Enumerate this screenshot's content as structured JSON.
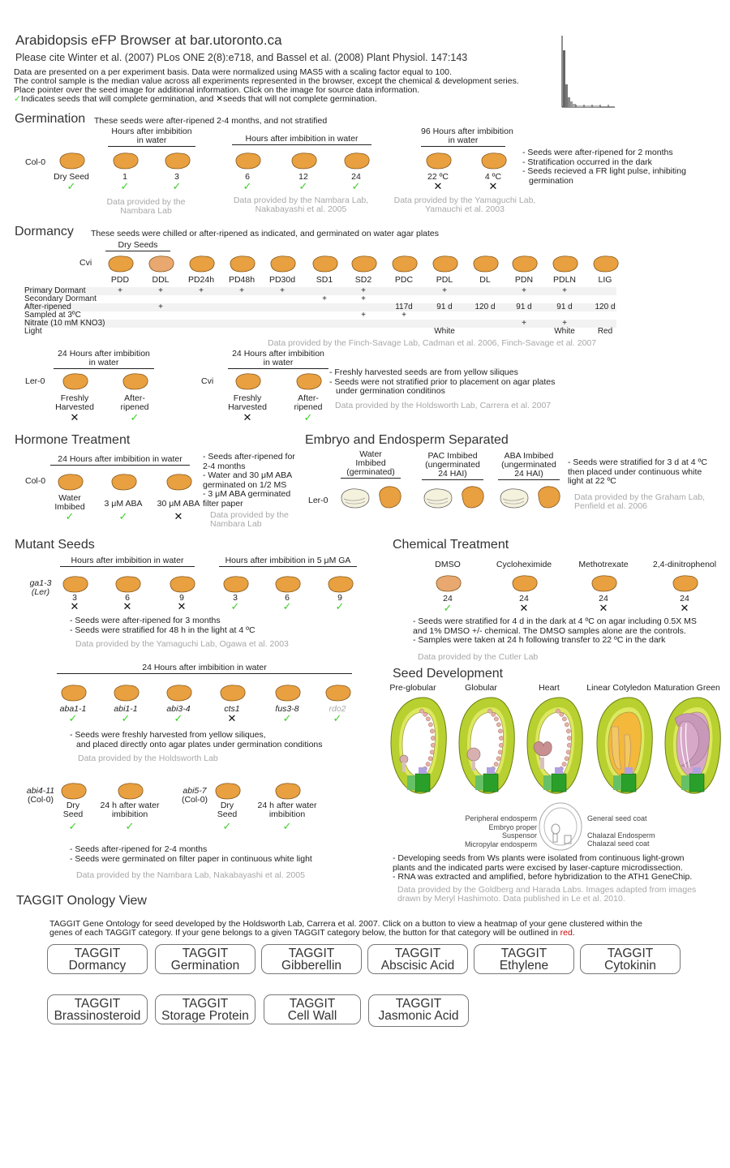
{
  "header": {
    "title": "Arabidopsis eFP Browser at bar.utoronto.ca",
    "citation": "Please cite Winter et al. (2007) PLos ONE 2(8):e718, and Bassel et al. (2008) Plant Physiol. 147:143",
    "intro_lines": [
      "Data are presented on a per experiment basis. Data were normalized using MAS5 with a scaling factor equal to 100.",
      "The control sample is the median value across all experiments represented in the browser, except the chemical & development series.",
      "Place pointer over the seed image for additional information. Click on the image for source data information."
    ],
    "legend_ok": "Indicates seeds that will complete germination, and",
    "legend_no": "seeds that will not complete germination."
  },
  "germination": {
    "title": "Germination",
    "subtitle": "These seeds were  after-ripened 2-4 months, and not stratified",
    "row_label": "Col-0",
    "hdr_a": [
      "Hours after imbibition",
      "in water"
    ],
    "hdr_b": "Hours after imbibition in water",
    "hdr_c": [
      "96 Hours after imbibition",
      "in water"
    ],
    "labels": [
      "Dry Seed",
      "1",
      "3",
      "6",
      "12",
      "24",
      "22 ºC",
      "4 ºC"
    ],
    "credit_a": [
      "Data provided by the",
      "Nambara Lab"
    ],
    "credit_b": [
      "Data provided by the Nambara Lab,",
      "Nakabayashi et al. 2005"
    ],
    "credit_c": [
      "Data provided by the Yamaguchi Lab,",
      "Yamauchi et al. 2003"
    ],
    "notes": [
      "- Seeds were after-ripened for 2 months",
      "- Stratification occurred in the dark",
      "- Seeds recieved a FR light pulse, inhibiting",
      "  germination"
    ]
  },
  "dormancy": {
    "title": "Dormancy",
    "subtitle": "These seeds were chilled or after-ripened as indicated, and germinated on water agar plates",
    "dry_seeds": "Dry Seeds",
    "row_label": "Cvi",
    "columns": [
      "PDD",
      "DDL",
      "PD24h",
      "PD48h",
      "PD30d",
      "SD1",
      "SD2",
      "PDC",
      "PDL",
      "DL",
      "PDN",
      "PDLN",
      "LIG"
    ],
    "rows": [
      {
        "label": "Primary Dormant",
        "cells": [
          "+",
          "+",
          "+",
          "+",
          "+",
          "",
          "+",
          "",
          "+",
          "",
          "+",
          "+",
          ""
        ]
      },
      {
        "label": "Secondary Dormant",
        "cells": [
          "",
          "",
          "",
          "",
          "",
          "+",
          "+",
          "",
          "",
          "",
          "",
          "",
          ""
        ]
      },
      {
        "label": "After-ripened",
        "cells": [
          "",
          "+",
          "",
          "",
          "",
          "",
          "",
          "117d",
          "91 d",
          "120 d",
          "91 d",
          "91 d",
          "120 d"
        ]
      },
      {
        "label": "Sampled at 3ºC",
        "cells": [
          "",
          "",
          "",
          "",
          "",
          "",
          "+",
          "+",
          "",
          "",
          "",
          "",
          ""
        ]
      },
      {
        "label": "Nitrate (10 mM KNO3)",
        "cells": [
          "",
          "",
          "",
          "",
          "",
          "",
          "",
          "",
          "",
          "",
          "+",
          "+",
          ""
        ]
      },
      {
        "label": "Light",
        "cells": [
          "",
          "",
          "",
          "",
          "",
          "",
          "",
          "",
          "White",
          "",
          "",
          "White",
          "Red"
        ]
      }
    ],
    "credit": "Data provided by the Finch-Savage Lab, Cadman et al. 2006, Finch-Savage et al. 2007",
    "hdr_ler": [
      "24 Hours after imbibition",
      "in water"
    ],
    "hdr_cvi": [
      "24 Hours after imbibition",
      "in water"
    ],
    "ler_label": "Ler-0",
    "cvi_label": "Cvi",
    "sub_labels": [
      [
        "Freshly",
        "Harvested"
      ],
      [
        "After-",
        "ripened"
      ],
      [
        "Freshly",
        "Harvested"
      ],
      [
        "After-",
        "ripened"
      ]
    ],
    "notes": [
      "- Freshly harvested seeds are from yellow siliques",
      "- Seeds were not stratified prior to placement on agar plates",
      "  under germination conditinos"
    ],
    "credit2": "Data provided by the Holdsworth Lab, Carrera et al. 2007"
  },
  "hormone": {
    "title": "Hormone Treatment",
    "hdr": "24 Hours after imbibition in water",
    "row_label": "Col-0",
    "labels": [
      [
        "Water",
        "Imbibed"
      ],
      [
        "3 μM ABA"
      ],
      [
        "30 μM ABA"
      ]
    ],
    "notes": [
      "- Seeds after-ripened for",
      "  2-4 months",
      "- Water and 30 μM ABA",
      "  germinated on 1/2 MS",
      "- 3 μM ABA germinated",
      "  filter paper"
    ],
    "credit": [
      "Data provided by the",
      "Nambara Lab"
    ]
  },
  "embryo": {
    "title": "Embryo and Endosperm Separated",
    "hdr_a": [
      "Water",
      "Imbibed",
      "(germinated)"
    ],
    "hdr_b": [
      "PAC Imbibed",
      "(ungerminated",
      "24 HAI)"
    ],
    "hdr_c": [
      "ABA Imbibed",
      "(ungerminated",
      "24 HAI)"
    ],
    "row_label": "Ler-0",
    "notes": [
      "- Seeds were stratified for 3 d at 4 ºC",
      "  then placed under continuous white",
      "  light at 22 ºC"
    ],
    "credit": [
      "Data provided by the Graham Lab,",
      "Penfield et al. 2006"
    ]
  },
  "mutant": {
    "title": "Mutant Seeds",
    "hdr_a": "Hours after imbibition in water",
    "hdr_b": "Hours after imbibition in 5 μM GA",
    "row_label": [
      "ga1-3",
      "(Ler)"
    ],
    "labels": [
      "3",
      "6",
      "9",
      "3",
      "6",
      "9"
    ],
    "notes": [
      "- Seeds were after-ripened for 3 months",
      "- Seeds were stratified for 48 h in the light at 4 ºC"
    ],
    "credit": "Data provided by the Yamaguchi Lab, Ogawa et al. 2003",
    "hdr_c": "24 Hours after imbibition in water",
    "labels2": [
      "aba1-1",
      "abi1-1",
      "abi3-4",
      "cts1",
      "fus3-8",
      "rdo2"
    ],
    "notes2": [
      "- Seeds were freshly harvested from yellow siliques,",
      "  and placed directly onto agar plates under germination conditions"
    ],
    "credit2": "Data provided by the Holdsworth Lab",
    "abi4_label": [
      "abi4-11",
      "(Col-0)"
    ],
    "abi5_label": [
      "abi5-7",
      "(Col-0)"
    ],
    "labels3": [
      [
        "Dry",
        "Seed"
      ],
      [
        "24 h after water",
        "imbibition"
      ],
      [
        "Dry",
        "Seed"
      ],
      [
        "24 h after water",
        "imbibition"
      ]
    ],
    "notes3": [
      "- Seeds after-ripened for 2-4 months",
      "- Seeds were germinated on filter paper in continuous white light"
    ],
    "credit3": "Data provided by the Nambara Lab, Nakabayashi et al. 2005"
  },
  "chemical": {
    "title": "Chemical Treatment",
    "names": [
      "DMSO",
      "Cycloheximide",
      "Methotrexate",
      "2,4-dinitrophenol"
    ],
    "labels": [
      "24",
      "24",
      "24",
      "24"
    ],
    "notes": [
      "- Seeds were stratified for 4 d in the dark at 4 ºC on agar including 0.5X MS",
      "  and 1% DMSO +/- chemical. The DMSO samples alone are the controls.",
      "- Samples were taken at 24 h following transfer to 22 ºC in the dark"
    ],
    "credit": "Data provided by the Cutler Lab"
  },
  "development": {
    "title": "Seed Development",
    "stages": [
      "Pre-globular",
      "Globular",
      "Heart",
      "Linear Cotyledon",
      "Maturation Green"
    ],
    "legend_left": [
      "Peripheral endosperm",
      "Embryo proper",
      "Suspensor",
      "Micropylar endosperm"
    ],
    "legend_right": [
      "General seed coat",
      "Chalazal Endosperm",
      "Chalazal seed coat"
    ],
    "notes": [
      "- Developing seeds from Ws plants were isolated from continuous light-grown",
      "  plants and the indicated parts were excised by laser-capture microdissection.",
      "- RNA was extracted and amplified, before hybridization to the ATH1 GeneChip."
    ],
    "credit": [
      "Data provided by the Goldberg and Harada Labs. Images adapted from images",
      "drawn by Meryl Hashimoto. Data published in Le et al. 2010."
    ]
  },
  "taggit": {
    "title": "TAGGIT Onology View",
    "desc_1": "TAGGIT Gene Ontology for seed developed by the Holdsworth Lab, Carrera et al. 2007. Click on a button to view a heatmap of your gene clustered within the",
    "desc_2": "genes of each TAGGIT category. If your gene belongs to a given TAGGIT category below, the button for that category will be outlined in",
    "desc_red": "red",
    "desc_end": ".",
    "buttons": [
      {
        "top": "TAGGIT",
        "bottom": "Dormancy"
      },
      {
        "top": "TAGGIT",
        "bottom": "Germination"
      },
      {
        "top": "TAGGIT",
        "bottom": "Gibberellin"
      },
      {
        "top": "TAGGIT",
        "bottom": "Abscisic Acid"
      },
      {
        "top": "TAGGIT",
        "bottom": "Ethylene"
      },
      {
        "top": "TAGGIT",
        "bottom": "Cytokinin"
      },
      {
        "top": "TAGGIT",
        "bottom": "Brassinosteroid"
      },
      {
        "top": "TAGGIT",
        "bottom": "Storage Protein"
      },
      {
        "top": "TAGGIT",
        "bottom": "Cell Wall"
      },
      {
        "top": "TAGGIT",
        "bottom": "Jasmonic Acid"
      }
    ]
  },
  "colors": {
    "seed": "#e8a040",
    "seed_light": "#e8a870",
    "check": "#3fcf2a",
    "red": "#cc0000"
  }
}
